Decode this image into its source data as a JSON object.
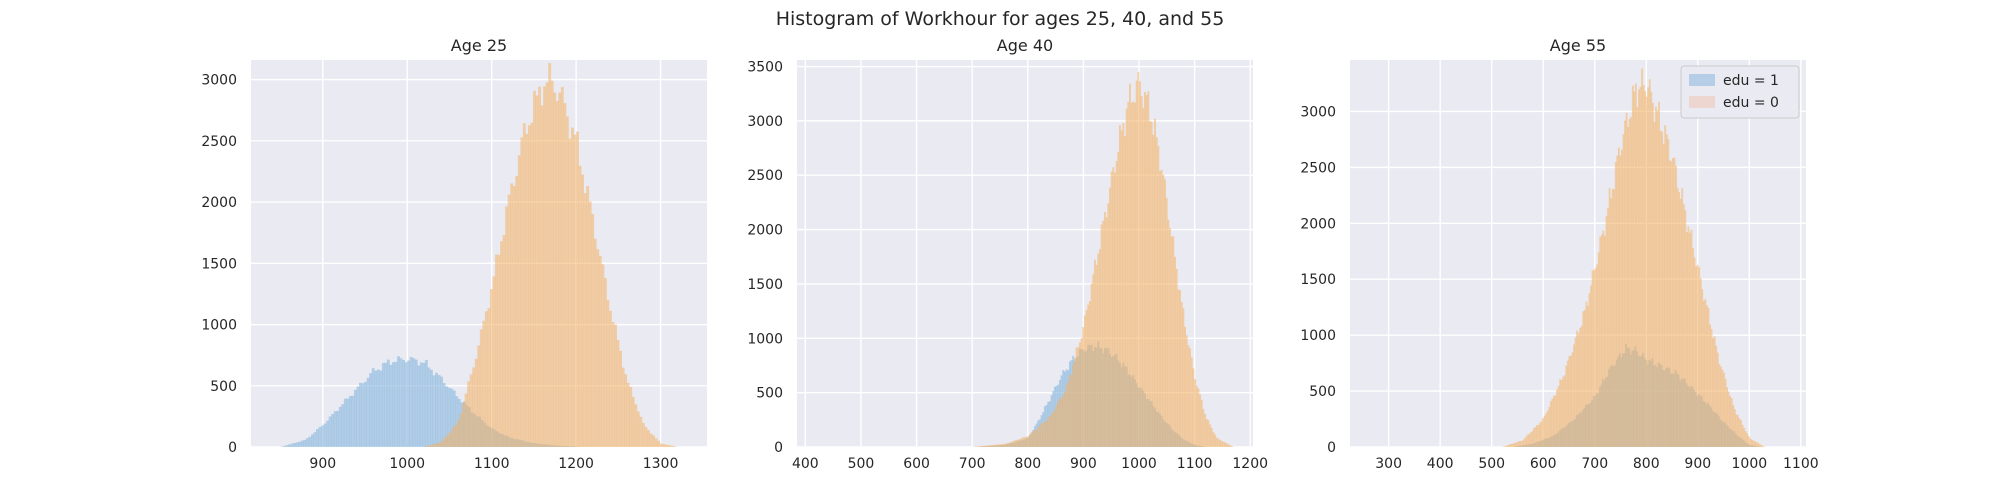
{
  "suptitle": "Histogram of Workhour for ages 25, 40, and 55",
  "colors": {
    "edu1": "#7fb2dd",
    "edu0": "#f3b367",
    "background": "#eaeaf2",
    "grid": "#ffffff"
  },
  "legend": {
    "position": "top-right",
    "entries": [
      "edu = 1",
      "edu = 0"
    ]
  },
  "chart_data": [
    {
      "type": "histogram",
      "title": "Age 25",
      "xlabel": "",
      "ylabel": "",
      "xlim": [
        815,
        1355
      ],
      "ylim": [
        0,
        3160
      ],
      "xticks": [
        900,
        1000,
        1100,
        1200,
        1300
      ],
      "yticks": [
        0,
        500,
        1000,
        1500,
        2000,
        2500,
        3000
      ],
      "grid": true,
      "series": [
        {
          "name": "edu = 1",
          "color": "#7fb2dd",
          "x": [
            850,
            880,
            900,
            930,
            960,
            980,
            1000,
            1020,
            1040,
            1060,
            1080,
            1100,
            1120,
            1150,
            1180,
            1210
          ],
          "values": [
            0,
            60,
            180,
            400,
            620,
            700,
            720,
            690,
            560,
            410,
            270,
            150,
            80,
            30,
            10,
            0
          ]
        },
        {
          "name": "edu = 0",
          "color": "#f3b367",
          "x": [
            1020,
            1040,
            1060,
            1080,
            1100,
            1120,
            1140,
            1160,
            1170,
            1180,
            1200,
            1220,
            1240,
            1260,
            1280,
            1300,
            1320
          ],
          "values": [
            0,
            40,
            200,
            700,
            1300,
            2000,
            2600,
            2950,
            3000,
            2900,
            2500,
            1850,
            1150,
            550,
            180,
            30,
            0
          ]
        }
      ]
    },
    {
      "type": "histogram",
      "title": "Age 40",
      "xlabel": "",
      "ylabel": "",
      "xlim": [
        385,
        1205
      ],
      "ylim": [
        0,
        3560
      ],
      "xticks": [
        400,
        500,
        600,
        700,
        800,
        900,
        1000,
        1100,
        1200
      ],
      "yticks": [
        0,
        500,
        1000,
        1500,
        2000,
        2500,
        3000,
        3500
      ],
      "grid": true,
      "series": [
        {
          "name": "edu = 1",
          "color": "#7fb2dd",
          "x": [
            700,
            760,
            800,
            820,
            840,
            860,
            880,
            900,
            920,
            940,
            960,
            980,
            1000,
            1020,
            1040,
            1060,
            1080,
            1100,
            1120
          ],
          "values": [
            0,
            20,
            80,
            250,
            450,
            650,
            800,
            900,
            930,
            900,
            820,
            700,
            560,
            420,
            280,
            160,
            70,
            20,
            0
          ]
        },
        {
          "name": "edu = 0",
          "color": "#f3b367",
          "x": [
            700,
            760,
            800,
            840,
            870,
            900,
            930,
            960,
            980,
            1000,
            1020,
            1040,
            1060,
            1080,
            1100,
            1120,
            1140,
            1170
          ],
          "values": [
            0,
            30,
            100,
            280,
            550,
            1100,
            1900,
            2700,
            3150,
            3350,
            3100,
            2600,
            1900,
            1200,
            650,
            280,
            80,
            0
          ]
        }
      ]
    },
    {
      "type": "histogram",
      "title": "Age 55",
      "xlabel": "",
      "ylabel": "",
      "xlim": [
        225,
        1110
      ],
      "ylim": [
        0,
        3460
      ],
      "xticks": [
        300,
        400,
        500,
        600,
        700,
        800,
        900,
        1000,
        1100
      ],
      "yticks": [
        0,
        500,
        1000,
        1500,
        2000,
        2500,
        3000
      ],
      "grid": true,
      "series": [
        {
          "name": "edu = 1",
          "color": "#7fb2dd",
          "x": [
            540,
            580,
            620,
            660,
            700,
            730,
            760,
            780,
            800,
            830,
            860,
            890,
            920,
            950,
            980,
            1000,
            1020
          ],
          "values": [
            0,
            30,
            100,
            250,
            450,
            700,
            880,
            860,
            780,
            720,
            650,
            520,
            380,
            220,
            90,
            20,
            0
          ]
        },
        {
          "name": "edu = 0",
          "color": "#f3b367",
          "x": [
            520,
            560,
            600,
            640,
            680,
            720,
            750,
            780,
            800,
            820,
            850,
            880,
            910,
            940,
            970,
            1000,
            1030
          ],
          "values": [
            0,
            60,
            250,
            650,
            1200,
            2000,
            2700,
            3200,
            3250,
            3000,
            2600,
            2000,
            1400,
            800,
            350,
            80,
            0
          ]
        }
      ]
    }
  ]
}
